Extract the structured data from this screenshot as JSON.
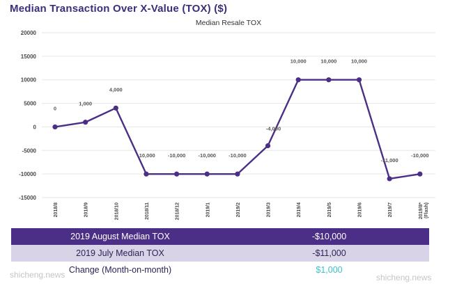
{
  "page_title": "Median Transaction Over X-Value (TOX) ($)",
  "accent_color": "#3cc0c8",
  "line_color": "#4b2f86",
  "chart_data": {
    "type": "line",
    "title": "Median Resale TOX",
    "categories": [
      "2018/8",
      "2018/9",
      "2018/10",
      "2018/11",
      "2018/12",
      "2019/1",
      "2019/2",
      "2019/3",
      "2019/4",
      "2019/5",
      "2019/6",
      "2019/7",
      "2019/8* (Flash)"
    ],
    "series": [
      {
        "values": [
          0,
          1000,
          4000,
          -10000,
          -10000,
          -10000,
          -10000,
          -4000,
          10000,
          10000,
          10000,
          -11000,
          -10000
        ]
      }
    ],
    "data_labels": [
      "0",
      "1,000",
      "4,000",
      "-10,000",
      "-10,000",
      "-10,000",
      "-10,000",
      "-4,000",
      "10,000",
      "10,000",
      "10,000",
      "-11,000",
      "-10,000"
    ],
    "ylim": [
      -15000,
      20000
    ],
    "yticks": [
      20000,
      15000,
      10000,
      5000,
      0,
      -5000,
      -10000,
      -15000
    ],
    "ytick_labels": [
      "20000",
      "15000",
      "10000",
      "5000",
      "0",
      "-5000",
      "-10000",
      "-15000"
    ],
    "grid": true
  },
  "summary": [
    {
      "label": "2019 August Median TOX",
      "value": "-$10,000"
    },
    {
      "label": "2019 July Median TOX",
      "value": "-$11,000"
    },
    {
      "label": "Change (Month-on-month)",
      "value": "$1,000"
    }
  ],
  "watermark": "shicheng.news"
}
